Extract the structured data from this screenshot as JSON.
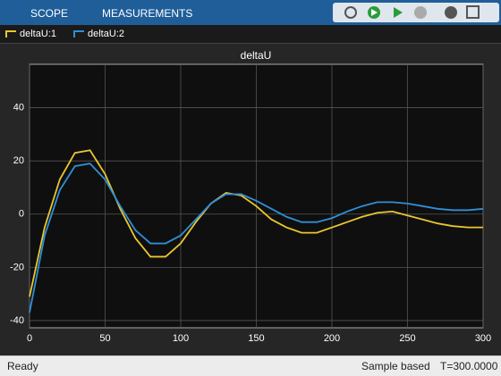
{
  "toolbar": {
    "tabs": [
      "SCOPE",
      "MEASUREMENTS"
    ]
  },
  "status": {
    "left": "Ready",
    "mode": "Sample based",
    "time": "T=300.0000"
  },
  "chart_data": {
    "type": "line",
    "title": "deltaU",
    "x": [
      0,
      10,
      20,
      30,
      40,
      50,
      60,
      70,
      80,
      90,
      100,
      110,
      120,
      130,
      140,
      150,
      160,
      170,
      180,
      190,
      200,
      210,
      220,
      230,
      240,
      250,
      260,
      270,
      280,
      290,
      300
    ],
    "series": [
      {
        "name": "deltaU:1",
        "color": "#e9c630",
        "values": [
          -31,
          -5,
          13,
          23,
          24,
          15,
          2,
          -9,
          -16,
          -16,
          -11,
          -3,
          4,
          8,
          7,
          3,
          -2,
          -5,
          -7,
          -7,
          -5,
          -3,
          -1,
          0.5,
          1,
          -0.5,
          -2,
          -3.5,
          -4.5,
          -5,
          -5
        ]
      },
      {
        "name": "deltaU:2",
        "color": "#2f8fd8",
        "values": [
          -37,
          -8,
          9,
          18,
          19,
          13,
          3,
          -6,
          -11,
          -11,
          -8,
          -2,
          4,
          7.5,
          7.5,
          5,
          2,
          -1,
          -3,
          -3,
          -1.5,
          1,
          3,
          4.5,
          4.5,
          4,
          3,
          2,
          1.5,
          1.5,
          2
        ]
      }
    ],
    "xlim": [
      0,
      300
    ],
    "xticks": [
      0,
      50,
      100,
      150,
      200,
      250,
      300
    ],
    "ylim": [
      -42.7,
      56.3
    ],
    "yticks": [
      -40,
      -20,
      0,
      20,
      40
    ],
    "grid": true
  }
}
